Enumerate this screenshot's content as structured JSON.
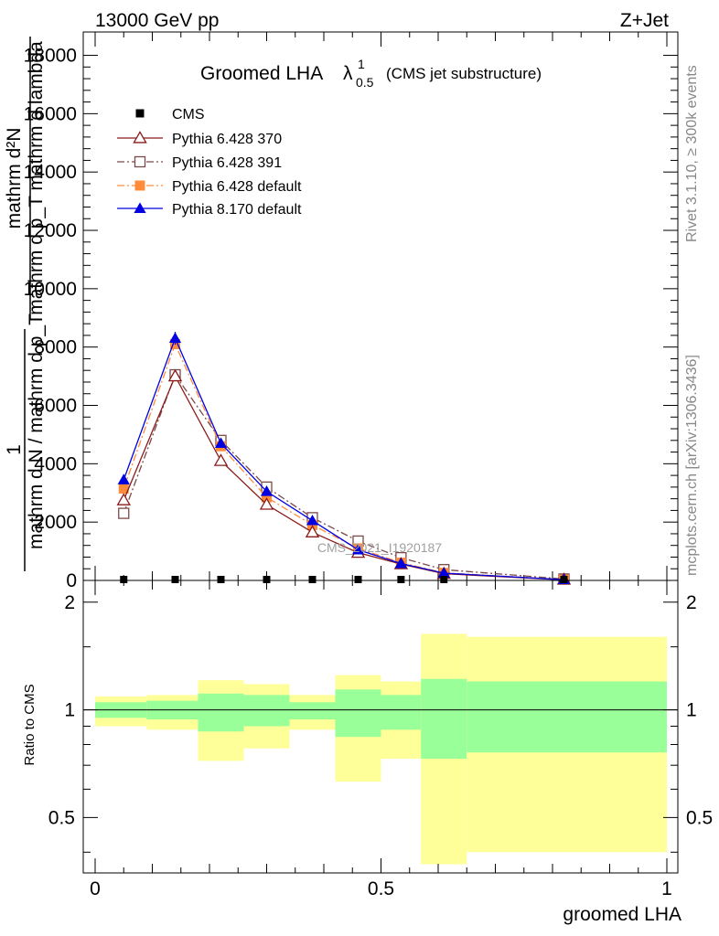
{
  "header": {
    "energy_label": "13000 GeV pp",
    "process_label": "Z+Jet"
  },
  "side_labels": {
    "rivet": "Rivet 3.1.10, ≥ 300k events",
    "mcplots": "mcplots.cern.ch [arXiv:1306.3436]"
  },
  "watermark": "CMS_2021_I1920187",
  "title": {
    "main": "Groomed LHA",
    "lambda": "λ",
    "sup": "1",
    "sub": "0.5",
    "note": "(CMS jet substructure)"
  },
  "ylabel_upper": {
    "numerator_a": "mathrm d²N",
    "denominator_a": "mathrm d p_T mathrm d lambda",
    "numerator_b": "1",
    "denominator_b": "mathrm d N / mathrm d p_T"
  },
  "ylabel_lower": "Ratio to CMS",
  "xlabel": "groomed LHA",
  "colors": {
    "cms": "#000000",
    "p6_370": "#8b1a1a",
    "p6_391": "#7a4a4a",
    "p6_default": "#ff8c3a",
    "p8_default": "#0000e0",
    "band_inner": "#99ff99",
    "band_outer": "#ffff99"
  },
  "chart_data": [
    {
      "type": "line",
      "title": "Groomed LHA λ^1_0.5 (CMS jet substructure)",
      "xlabel": "groomed LHA",
      "ylabel": "1 / (mathrm d N / mathrm d p_T) · mathrm d²N / (mathrm d p_T mathrm d lambda)",
      "xlim": [
        0,
        1
      ],
      "ylim": [
        0,
        18800
      ],
      "yticks": [
        0,
        2000,
        4000,
        6000,
        8000,
        10000,
        12000,
        14000,
        16000,
        18000
      ],
      "ytick_labels": [
        "0",
        "2000",
        "4000",
        "6000",
        "8000",
        "10000",
        "12000",
        "14000",
        "16000",
        "18000"
      ],
      "legend_position": "top-left",
      "series": [
        {
          "name": "CMS",
          "marker": "square",
          "x": [
            0.05,
            0.14,
            0.22,
            0.3,
            0.38,
            0.46,
            0.535,
            0.61,
            0.82
          ],
          "y": [
            30,
            30,
            30,
            30,
            30,
            30,
            30,
            30,
            30
          ]
        },
        {
          "name": "Pythia 6.428 370",
          "marker": "open-triangle",
          "x": [
            0.05,
            0.14,
            0.22,
            0.3,
            0.38,
            0.46,
            0.535,
            0.61,
            0.82
          ],
          "y": [
            2750,
            7000,
            4100,
            2600,
            1650,
            950,
            560,
            230,
            20
          ]
        },
        {
          "name": "Pythia 6.428 391",
          "marker": "open-square",
          "x": [
            0.05,
            0.14,
            0.22,
            0.3,
            0.38,
            0.46,
            0.535,
            0.61,
            0.82
          ],
          "y": [
            2300,
            7050,
            4800,
            3200,
            2150,
            1350,
            780,
            370,
            50
          ]
        },
        {
          "name": "Pythia 6.428 default",
          "marker": "filled-square",
          "x": [
            0.05,
            0.14,
            0.22,
            0.3,
            0.38,
            0.46,
            0.535,
            0.61,
            0.82
          ],
          "y": [
            3150,
            8100,
            4600,
            2850,
            1900,
            1100,
            610,
            260,
            25
          ]
        },
        {
          "name": "Pythia 8.170 default",
          "marker": "filled-triangle",
          "x": [
            0.05,
            0.14,
            0.22,
            0.3,
            0.38,
            0.46,
            0.535,
            0.61,
            0.82
          ],
          "y": [
            3450,
            8300,
            4700,
            3050,
            2050,
            1050,
            580,
            250,
            25
          ]
        }
      ]
    },
    {
      "type": "area",
      "ylabel": "Ratio to CMS",
      "xlabel": "groomed LHA",
      "xlim": [
        0,
        1
      ],
      "ylim": [
        0.35,
        2.3
      ],
      "xticks": [
        0,
        0.5,
        1
      ],
      "xtick_labels": [
        "0",
        "0.5",
        "1"
      ],
      "yticks": [
        0.5,
        1,
        2
      ],
      "ytick_labels": [
        "0.5",
        "1",
        "2"
      ],
      "bins": [
        {
          "x0": 0.0,
          "x1": 0.09,
          "outer": [
            0.9,
            1.09
          ],
          "inner": [
            0.95,
            1.05
          ]
        },
        {
          "x0": 0.09,
          "x1": 0.18,
          "outer": [
            0.88,
            1.1
          ],
          "inner": [
            0.94,
            1.06
          ]
        },
        {
          "x0": 0.18,
          "x1": 0.26,
          "outer": [
            0.72,
            1.21
          ],
          "inner": [
            0.87,
            1.11
          ]
        },
        {
          "x0": 0.26,
          "x1": 0.34,
          "outer": [
            0.78,
            1.18
          ],
          "inner": [
            0.9,
            1.1
          ]
        },
        {
          "x0": 0.34,
          "x1": 0.42,
          "outer": [
            0.88,
            1.1
          ],
          "inner": [
            0.94,
            1.05
          ]
        },
        {
          "x0": 0.42,
          "x1": 0.5,
          "outer": [
            0.63,
            1.25
          ],
          "inner": [
            0.84,
            1.14
          ]
        },
        {
          "x0": 0.5,
          "x1": 0.57,
          "outer": [
            0.73,
            1.2
          ],
          "inner": [
            0.88,
            1.1
          ]
        },
        {
          "x0": 0.57,
          "x1": 0.65,
          "outer": [
            0.37,
            1.63
          ],
          "inner": [
            0.73,
            1.22
          ]
        },
        {
          "x0": 0.65,
          "x1": 1.0,
          "outer": [
            0.4,
            1.6
          ],
          "inner": [
            0.76,
            1.2
          ]
        }
      ],
      "reference_line": 1
    }
  ]
}
